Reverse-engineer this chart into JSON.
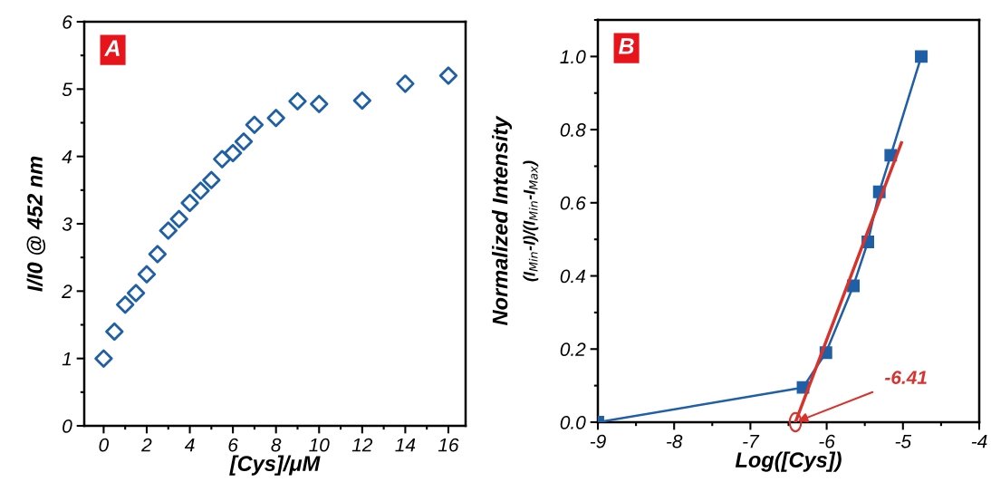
{
  "chart_data": [
    {
      "type": "scatter",
      "xlabel": "[Cys]/μM",
      "ylabel": "I/I0 @ 452 nm",
      "annotations": [
        "A"
      ],
      "marker": "diamond",
      "xlim": [
        -0.9,
        16.8
      ],
      "ylim": [
        0,
        6
      ],
      "xticks": [
        0,
        2,
        4,
        6,
        8,
        10,
        12,
        14,
        16
      ],
      "yticks": [
        0,
        1,
        2,
        3,
        4,
        5,
        6
      ],
      "grid": false,
      "legend": false,
      "series": [
        {
          "color": "#1f5fa6",
          "x": [
            0,
            0.5,
            1,
            1.5,
            2,
            2.5,
            3,
            3.5,
            4,
            4.5,
            5,
            5.5,
            6,
            6.5,
            7,
            8,
            9,
            10,
            12,
            14,
            16
          ],
          "values": [
            1.0,
            1.4,
            1.8,
            1.97,
            2.25,
            2.55,
            2.9,
            3.07,
            3.31,
            3.49,
            3.65,
            3.96,
            4.05,
            4.22,
            4.47,
            4.57,
            4.82,
            4.78,
            4.83,
            5.08,
            5.2
          ]
        }
      ]
    },
    {
      "type": "line",
      "xlabel": "Log([Cys])",
      "ylabel": "Normalized Intensity\n(I$_{Min}$-I)/(I$_{Min}$-I$_{Max}$)",
      "annotations": [
        "B",
        {
          "text": "-6.41",
          "x": -6.41,
          "y": 0
        }
      ],
      "xlim": [
        -9,
        -4
      ],
      "ylim": [
        0,
        1.1
      ],
      "xticks": [
        -9,
        -8,
        -7,
        -6,
        -5,
        -4
      ],
      "yticks": [
        {
          "value": 0,
          "label": "0.0"
        },
        0.2,
        0.4,
        0.6,
        0.8,
        {
          "value": 1,
          "label": "1.0"
        }
      ],
      "grid": false,
      "legend": false,
      "series": [
        {
          "color": "#1f5fa6",
          "marker": "square",
          "x": [
            -9,
            -6.31,
            -6.01,
            -5.65,
            -5.46,
            -5.31,
            -5.16,
            -4.76
          ],
          "values": [
            0,
            0.095,
            0.19,
            0.373,
            0.493,
            0.63,
            0.73,
            1.0
          ]
        },
        {
          "color": "#d8322c",
          "x": [
            -6.41,
            -5.02
          ],
          "values": [
            0,
            0.764
          ]
        }
      ]
    }
  ]
}
